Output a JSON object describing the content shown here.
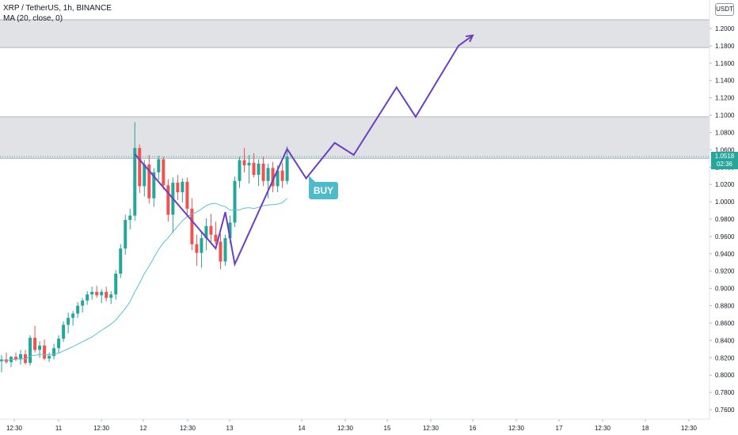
{
  "header": {
    "symbol_line": "XRP / TetherUS, 1h, BINANCE",
    "indicator_line": "MA (20, close, 0)"
  },
  "price_axis": {
    "currency": "USDT",
    "labels": [
      "1.2000",
      "1.1800",
      "1.1600",
      "1.1400",
      "1.1200",
      "1.1000",
      "1.0800",
      "1.0600",
      "1.0400",
      "1.0200",
      "1.0000",
      "0.9800",
      "0.9600",
      "0.9400",
      "0.9200",
      "0.9000",
      "0.8800",
      "0.8600",
      "0.8400",
      "0.8200",
      "0.8000",
      "0.7800",
      "0.7600"
    ],
    "current_price": "1.0518",
    "countdown": "02:36"
  },
  "time_axis": {
    "labels": [
      "12:30",
      "11",
      "12:30",
      "12",
      "12:30",
      "13",
      "14",
      "12:30",
      "15",
      "12:30",
      "16",
      "12:30",
      "17",
      "12:30",
      "18",
      "12:30"
    ]
  },
  "annotations": {
    "buy_label": "BUY"
  },
  "colors": {
    "up": "#26a69a",
    "down": "#ef5350",
    "ma": "#5cbfd6",
    "drawing": "#6a3fc4",
    "zone": "#dcdde0",
    "label_badge": "#4dbbc9"
  },
  "chart_data": {
    "type": "candlestick",
    "timeframe": "1h",
    "ylim": [
      0.75,
      1.21
    ],
    "ma_period": 20,
    "zones": [
      {
        "from": 1.178,
        "to": 1.21
      },
      {
        "from": 1.05,
        "to": 1.098
      }
    ],
    "candles": [
      {
        "o": 0.816,
        "h": 0.823,
        "l": 0.803,
        "c": 0.818
      },
      {
        "o": 0.818,
        "h": 0.826,
        "l": 0.813,
        "c": 0.815
      },
      {
        "o": 0.815,
        "h": 0.822,
        "l": 0.809,
        "c": 0.821
      },
      {
        "o": 0.821,
        "h": 0.826,
        "l": 0.816,
        "c": 0.818
      },
      {
        "o": 0.818,
        "h": 0.829,
        "l": 0.812,
        "c": 0.824
      },
      {
        "o": 0.824,
        "h": 0.829,
        "l": 0.812,
        "c": 0.814
      },
      {
        "o": 0.814,
        "h": 0.846,
        "l": 0.811,
        "c": 0.843
      },
      {
        "o": 0.843,
        "h": 0.857,
        "l": 0.826,
        "c": 0.829
      },
      {
        "o": 0.829,
        "h": 0.839,
        "l": 0.82,
        "c": 0.834
      },
      {
        "o": 0.834,
        "h": 0.841,
        "l": 0.817,
        "c": 0.819
      },
      {
        "o": 0.819,
        "h": 0.826,
        "l": 0.815,
        "c": 0.822
      },
      {
        "o": 0.822,
        "h": 0.836,
        "l": 0.818,
        "c": 0.831
      },
      {
        "o": 0.831,
        "h": 0.846,
        "l": 0.825,
        "c": 0.842
      },
      {
        "o": 0.842,
        "h": 0.862,
        "l": 0.838,
        "c": 0.858
      },
      {
        "o": 0.858,
        "h": 0.872,
        "l": 0.848,
        "c": 0.866
      },
      {
        "o": 0.866,
        "h": 0.874,
        "l": 0.857,
        "c": 0.871
      },
      {
        "o": 0.871,
        "h": 0.884,
        "l": 0.866,
        "c": 0.88
      },
      {
        "o": 0.88,
        "h": 0.889,
        "l": 0.872,
        "c": 0.886
      },
      {
        "o": 0.886,
        "h": 0.897,
        "l": 0.881,
        "c": 0.893
      },
      {
        "o": 0.893,
        "h": 0.902,
        "l": 0.887,
        "c": 0.896
      },
      {
        "o": 0.896,
        "h": 0.903,
        "l": 0.889,
        "c": 0.892
      },
      {
        "o": 0.892,
        "h": 0.899,
        "l": 0.883,
        "c": 0.896
      },
      {
        "o": 0.896,
        "h": 0.902,
        "l": 0.885,
        "c": 0.889
      },
      {
        "o": 0.889,
        "h": 0.897,
        "l": 0.882,
        "c": 0.893
      },
      {
        "o": 0.893,
        "h": 0.921,
        "l": 0.887,
        "c": 0.917
      },
      {
        "o": 0.917,
        "h": 0.951,
        "l": 0.912,
        "c": 0.946
      },
      {
        "o": 0.946,
        "h": 0.985,
        "l": 0.939,
        "c": 0.979
      },
      {
        "o": 0.979,
        "h": 0.992,
        "l": 0.968,
        "c": 0.984
      },
      {
        "o": 0.984,
        "h": 1.092,
        "l": 0.978,
        "c": 1.062
      },
      {
        "o": 1.062,
        "h": 1.066,
        "l": 1.01,
        "c": 1.018
      },
      {
        "o": 1.018,
        "h": 1.048,
        "l": 1.006,
        "c": 1.043
      },
      {
        "o": 1.043,
        "h": 1.054,
        "l": 0.998,
        "c": 1.004
      },
      {
        "o": 1.004,
        "h": 1.039,
        "l": 0.994,
        "c": 1.034
      },
      {
        "o": 1.034,
        "h": 1.053,
        "l": 1.025,
        "c": 1.049
      },
      {
        "o": 1.049,
        "h": 1.052,
        "l": 1.014,
        "c": 1.019
      },
      {
        "o": 1.019,
        "h": 1.026,
        "l": 0.977,
        "c": 0.985
      },
      {
        "o": 0.985,
        "h": 1.028,
        "l": 0.964,
        "c": 1.022
      },
      {
        "o": 1.022,
        "h": 1.031,
        "l": 1.002,
        "c": 1.011
      },
      {
        "o": 1.011,
        "h": 1.027,
        "l": 0.999,
        "c": 1.023
      },
      {
        "o": 1.023,
        "h": 1.028,
        "l": 0.983,
        "c": 0.992
      },
      {
        "o": 0.992,
        "h": 1.004,
        "l": 0.944,
        "c": 0.951
      },
      {
        "o": 0.951,
        "h": 0.962,
        "l": 0.926,
        "c": 0.941
      },
      {
        "o": 0.941,
        "h": 0.966,
        "l": 0.924,
        "c": 0.958
      },
      {
        "o": 0.958,
        "h": 0.981,
        "l": 0.944,
        "c": 0.972
      },
      {
        "o": 0.972,
        "h": 0.986,
        "l": 0.954,
        "c": 0.962
      },
      {
        "o": 0.962,
        "h": 0.977,
        "l": 0.951,
        "c": 0.954
      },
      {
        "o": 0.954,
        "h": 0.963,
        "l": 0.922,
        "c": 0.931
      },
      {
        "o": 0.931,
        "h": 0.962,
        "l": 0.926,
        "c": 0.958
      },
      {
        "o": 0.958,
        "h": 0.984,
        "l": 0.952,
        "c": 0.976
      },
      {
        "o": 0.976,
        "h": 1.029,
        "l": 0.971,
        "c": 1.024
      },
      {
        "o": 1.024,
        "h": 1.052,
        "l": 1.016,
        "c": 1.048
      },
      {
        "o": 1.048,
        "h": 1.062,
        "l": 1.034,
        "c": 1.042
      },
      {
        "o": 1.042,
        "h": 1.054,
        "l": 1.021,
        "c": 1.045
      },
      {
        "o": 1.045,
        "h": 1.056,
        "l": 1.028,
        "c": 1.031
      },
      {
        "o": 1.031,
        "h": 1.049,
        "l": 1.018,
        "c": 1.044
      },
      {
        "o": 1.044,
        "h": 1.052,
        "l": 1.018,
        "c": 1.024
      },
      {
        "o": 1.024,
        "h": 1.044,
        "l": 1.004,
        "c": 1.039
      },
      {
        "o": 1.039,
        "h": 1.046,
        "l": 1.011,
        "c": 1.018
      },
      {
        "o": 1.018,
        "h": 1.042,
        "l": 1.011,
        "c": 1.036
      },
      {
        "o": 1.036,
        "h": 1.045,
        "l": 1.016,
        "c": 1.024
      },
      {
        "o": 1.024,
        "h": 1.064,
        "l": 1.02,
        "c": 1.052
      }
    ],
    "projection_path": [
      {
        "bar": 28,
        "price": 1.055
      },
      {
        "bar": 45,
        "price": 0.946
      },
      {
        "bar": 47,
        "price": 0.988
      },
      {
        "bar": 49,
        "price": 0.928
      },
      {
        "bar": 60,
        "price": 1.061
      },
      {
        "bar": 64,
        "price": 1.027
      },
      {
        "bar": 70,
        "price": 1.068
      },
      {
        "bar": 74,
        "price": 1.054
      },
      {
        "bar": 83,
        "price": 1.132
      },
      {
        "bar": 87,
        "price": 1.098
      },
      {
        "bar": 96,
        "price": 1.18
      },
      {
        "bar": 99,
        "price": 1.192
      }
    ]
  }
}
